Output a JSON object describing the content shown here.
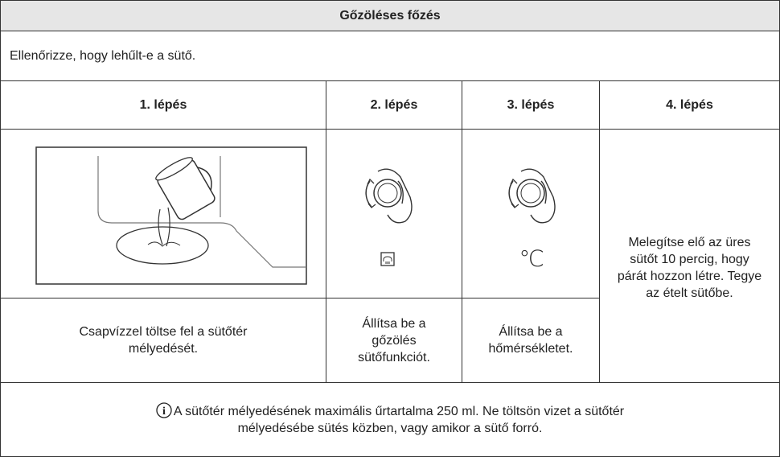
{
  "table": {
    "title": "Gőzöléses főzés",
    "intro": "Ellenőrizze, hogy lehűlt-e a sütő.",
    "steps": [
      {
        "heading": "1. lépés",
        "text": "Csapvízzel töltse fel a sütőtér mélyedését."
      },
      {
        "heading": "2. lépés",
        "text": "Állítsa be a gőzölés sütőfunkciót."
      },
      {
        "heading": "3. lépés",
        "symbol": "℃",
        "text": "Állítsa be a hőmérsékletet."
      },
      {
        "heading": "4. lépés",
        "text": "Melegítse elő az üres sütőt 10 percig, hogy párát hozzon létre. Tegye az ételt sütőbe."
      }
    ],
    "note": "A sütőtér mélyedésének maximális űrtartalma 250 ml. Ne töltsön vizet a sütőtér mélyedésébe sütés közben, vagy amikor a sütő forró."
  }
}
